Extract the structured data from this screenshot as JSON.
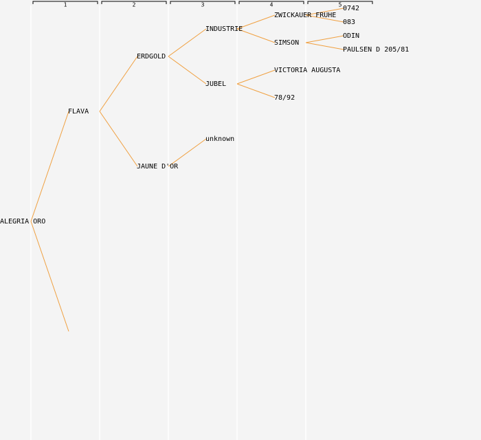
{
  "generations": [
    1,
    2,
    3,
    4,
    5
  ],
  "tree": {
    "label": "ALEGRIA ORO",
    "children": [
      {
        "label": "FLAVA",
        "children": [
          {
            "label": "ERDGOLD",
            "children": [
              {
                "label": "INDUSTRIE",
                "children": [
                  {
                    "label": "ZWICKAUER FRUHE",
                    "children": [
                      {
                        "label": "0742"
                      },
                      {
                        "label": "083"
                      }
                    ]
                  },
                  {
                    "label": "SIMSON",
                    "children": [
                      {
                        "label": "ODIN"
                      },
                      {
                        "label": "PAULSEN D 205/81"
                      }
                    ]
                  }
                ]
              },
              {
                "label": "JUBEL",
                "children": [
                  {
                    "label": "VICTORIA AUGUSTA"
                  },
                  {
                    "label": "78/92"
                  }
                ]
              }
            ]
          },
          {
            "label": "JAUNE D'OR",
            "children": [
              {
                "label": "unknown"
              }
            ]
          }
        ]
      },
      {
        "label": null
      }
    ]
  }
}
